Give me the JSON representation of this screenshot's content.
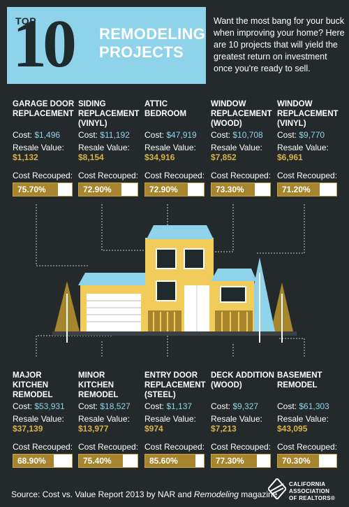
{
  "header": {
    "top_label": "TOP",
    "number": "10",
    "headline": "REMODELING PROJECTS",
    "intro": "Want the most bang for your buck when improving your home? Here are 10 projects that will yield the greatest return on investment once you're ready to sell."
  },
  "labels": {
    "cost": "Cost: ",
    "resale": "Resale Value:",
    "recouped": "Cost Recouped:"
  },
  "projects_top": [
    {
      "name": "GARAGE DOOR REPLACEMENT",
      "cost": "$1,496",
      "resale": "$1,132",
      "recouped": "75.70%",
      "recouped_value": 75.7
    },
    {
      "name": "SIDING REPLACEMENT (VINYL)",
      "cost": "$11,192",
      "resale": "$8,154",
      "recouped": "72.90%",
      "recouped_value": 72.9
    },
    {
      "name": "ATTIC BEDROOM",
      "cost": "$47,919",
      "resale": "$34,916",
      "recouped": "72.90%",
      "recouped_value": 72.9
    },
    {
      "name": "WINDOW REPLACEMENT (WOOD)",
      "cost": "$10,708",
      "resale": "$7,852",
      "recouped": "73.30%",
      "recouped_value": 73.3
    },
    {
      "name": "WINDOW REPLACEMENT (VINYL)",
      "cost": "$9,770",
      "resale": "$6,961",
      "recouped": "71.20%",
      "recouped_value": 71.2
    }
  ],
  "projects_bottom": [
    {
      "name": "MAJOR KITCHEN REMODEL",
      "cost": "$53,931",
      "resale": "$37,139",
      "recouped": "68.90%",
      "recouped_value": 68.9
    },
    {
      "name": "MINOR KITCHEN REMODEL",
      "cost": "$18,527",
      "resale": "$13,977",
      "recouped": "75.40%",
      "recouped_value": 75.4
    },
    {
      "name": "ENTRY DOOR REPLACEMENT (STEEL)",
      "cost": "$1,137",
      "resale": "$974",
      "recouped": "85.60%",
      "recouped_value": 85.6
    },
    {
      "name": "DECK ADDITION (WOOD)",
      "cost": "$9,327",
      "resale": "$7,213",
      "recouped": "77.30%",
      "recouped_value": 77.3
    },
    {
      "name": "BASEMENT REMODEL",
      "cost": "$61,303",
      "resale": "$43,095",
      "recouped": "70.30%",
      "recouped_value": 70.3
    }
  ],
  "footer": {
    "source_prefix": "Source: Cost vs. Value Report 2013 by NAR and ",
    "source_italic": "Remodeling",
    "source_suffix": " magazine",
    "logo_line1": "CALIFORNIA",
    "logo_line2": "ASSOCIATION",
    "logo_line3": "OF REALTORS®"
  },
  "colors": {
    "background": "#24292b",
    "accent_blue": "#8fd3ea",
    "accent_gold": "#a6852d",
    "house_yellow": "#f2cc5a"
  }
}
